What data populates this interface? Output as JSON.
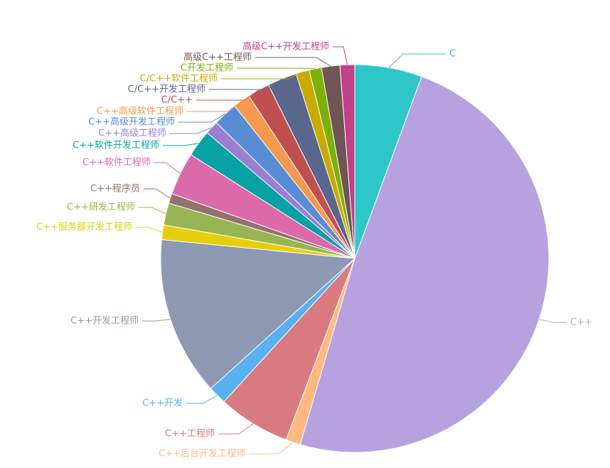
{
  "chart_data": {
    "type": "pie",
    "title": "",
    "slices": [
      {
        "name": "C",
        "value": 5.5,
        "color": "#2ec7c9"
      },
      {
        "name": "C++",
        "value": 48.0,
        "color": "#b6a2de"
      },
      {
        "name": "C++后台开发工程师",
        "value": 1.2,
        "color": "#ffb980"
      },
      {
        "name": "C++工程师",
        "value": 5.9,
        "color": "#d87a80"
      },
      {
        "name": "C++开发",
        "value": 1.5,
        "color": "#5ab1ef"
      },
      {
        "name": "C++开发工程师",
        "value": 13.0,
        "color": "#8d98b3"
      },
      {
        "name": "C++服务器开发工程师",
        "value": 1.2,
        "color": "#e5cf0d"
      },
      {
        "name": "C++研发工程师",
        "value": 1.8,
        "color": "#97b552"
      },
      {
        "name": "C++程序员",
        "value": 0.8,
        "color": "#95706d"
      },
      {
        "name": "C++软件工程师",
        "value": 3.5,
        "color": "#dc69aa"
      },
      {
        "name": "C++软件开发工程师",
        "value": 2.2,
        "color": "#07a2a4"
      },
      {
        "name": "C++高级工程师",
        "value": 1.1,
        "color": "#9a7fd1"
      },
      {
        "name": "C++高级开发工程师",
        "value": 2.0,
        "color": "#588dd5"
      },
      {
        "name": "C++高级软件工程师",
        "value": 1.4,
        "color": "#f5994e"
      },
      {
        "name": "C/C++",
        "value": 1.8,
        "color": "#c05050"
      },
      {
        "name": "C/C++开发工程师",
        "value": 2.4,
        "color": "#59678c"
      },
      {
        "name": "C/C++软件工程师",
        "value": 1.1,
        "color": "#c9ab00"
      },
      {
        "name": "C开发工程师",
        "value": 1.0,
        "color": "#7eb00a"
      },
      {
        "name": "高级C++工程师",
        "value": 1.5,
        "color": "#6f5553"
      },
      {
        "name": "高级C++开发工程师",
        "value": 1.2,
        "color": "#c14089"
      }
    ]
  }
}
